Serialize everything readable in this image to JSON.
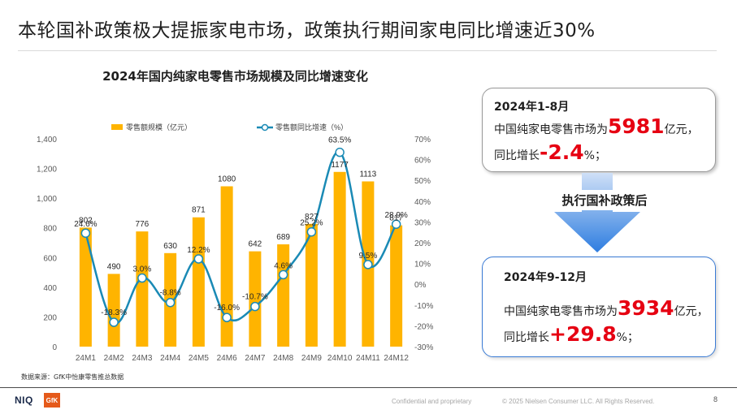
{
  "slide": {
    "title": "本轮国补政策极大提振家电市场，政策执行期间家电同比增速近30%",
    "page_number": "8"
  },
  "chart_data": {
    "type": "bar",
    "title": "2024年国内纯家电零售市场规模及同比增速变化",
    "categories": [
      "24M1",
      "24M2",
      "24M3",
      "24M4",
      "24M5",
      "24M6",
      "24M7",
      "24M8",
      "24M9",
      "24M10",
      "24M11",
      "24M12"
    ],
    "series": [
      {
        "name": "零售额规模（亿元）",
        "type": "bar",
        "axis": "left",
        "color": "#ffb400",
        "values": [
          802,
          490,
          776,
          630,
          871,
          1080,
          642,
          689,
          827,
          1177,
          1113,
          817
        ]
      },
      {
        "name": "零售额同比增速（%）",
        "type": "line",
        "axis": "right",
        "color": "#1a8ab5",
        "values": [
          24.6,
          -18.3,
          3.0,
          -8.8,
          12.2,
          -16.0,
          -10.7,
          4.6,
          25.2,
          63.5,
          9.5,
          28.9
        ]
      }
    ],
    "bar_labels": [
      "802",
      "490",
      "776",
      "630",
      "871",
      "1080",
      "642",
      "689",
      "827",
      "1177",
      "1113",
      "817"
    ],
    "line_labels": [
      "24.6%",
      "-18.3%",
      "3.0%",
      "-8.8%",
      "12.2%",
      "-16.0%",
      "-10.7%",
      "4.6%",
      "25.2%",
      "63.5%",
      "9.5%",
      "28.9%"
    ],
    "y_left": {
      "min": 0,
      "max": 1400,
      "ticks": [
        0,
        200,
        400,
        600,
        800,
        1000,
        1200,
        1400
      ],
      "tick_labels": [
        "0",
        "200",
        "400",
        "600",
        "800",
        "1,000",
        "1,200",
        "1,400"
      ]
    },
    "y_right": {
      "min": -30,
      "max": 70,
      "ticks": [
        -30,
        -20,
        -10,
        0,
        10,
        20,
        30,
        40,
        50,
        60,
        70
      ],
      "tick_labels": [
        "-30%",
        "-20%",
        "-10%",
        "0%",
        "10%",
        "20%",
        "30%",
        "40%",
        "50%",
        "60%",
        "70%"
      ]
    },
    "legend_position": "top",
    "grid": false
  },
  "source": "数据来源：GfK中怡康零售推总数据",
  "summary_before": {
    "period": "2024年1-8月",
    "line1_prefix": "中国纯家电零售市场为",
    "line1_value": "5981",
    "line1_suffix": "亿元，",
    "line2_prefix": "同比增长",
    "line2_value": "-2.4",
    "line2_suffix": "%；"
  },
  "arrow_label": "执行国补政策后",
  "summary_after": {
    "period": "2024年9-12月",
    "line1_prefix": "中国纯家电零售市场为",
    "line1_value": "3934",
    "line1_suffix": "亿元，",
    "line2_prefix": "同比增长",
    "line2_value": "+29.8",
    "line2_suffix": "%；"
  },
  "footer": {
    "logo_niq": "NIQ",
    "logo_gfk": "GfK",
    "confidential": "Confidential and proprietary",
    "copyright": "© 2025 Nielsen Consumer LLC. All Rights Reserved."
  },
  "colors": {
    "bar": "#ffb400",
    "line": "#1a8ab5",
    "highlight_red": "#e60012",
    "arrow_blue": "#2e7de0"
  }
}
